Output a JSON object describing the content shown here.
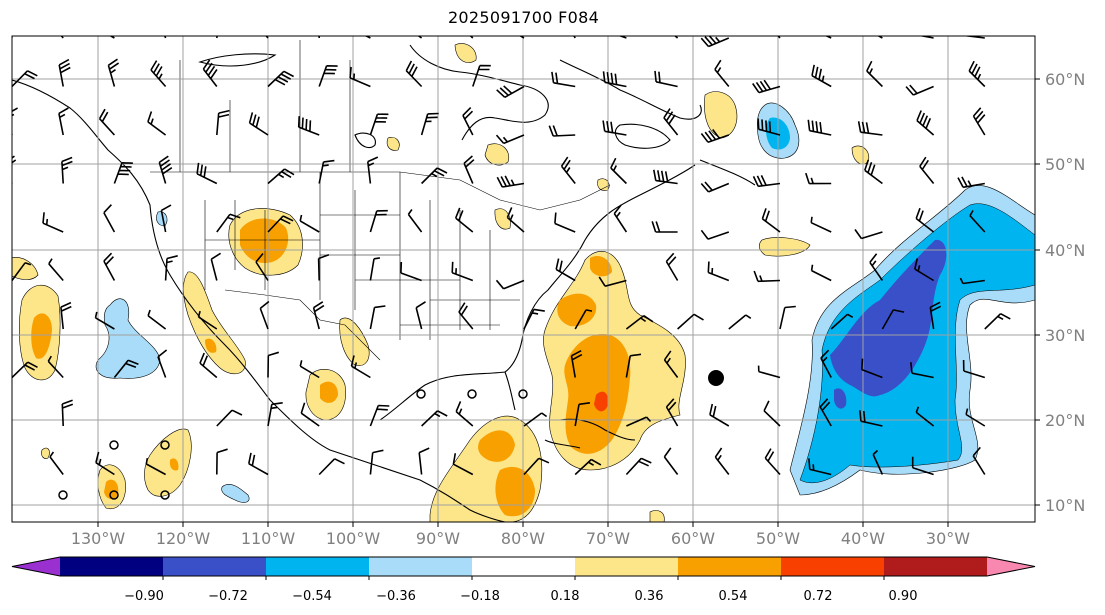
{
  "title": "2025091700 F084",
  "lat_labels": [
    "60°N",
    "50°N",
    "40°N",
    "30°N",
    "20°N",
    "10°N"
  ],
  "lon_labels": [
    "130°W",
    "120°W",
    "110°W",
    "100°W",
    "90°W",
    "80°W",
    "70°W",
    "60°W",
    "50°W",
    "40°W",
    "30°W"
  ],
  "colorbar": {
    "colors": [
      "#9b30d0",
      "#000080",
      "#3a50c8",
      "#00b4f0",
      "#a8dcf8",
      "#ffffff",
      "#fde68a",
      "#f8a000",
      "#f84000",
      "#b01c1c",
      "#f888b0"
    ],
    "ticks": [
      "−0.90",
      "−0.72",
      "−0.54",
      "−0.36",
      "−0.18",
      "0.18",
      "0.36",
      "0.54",
      "0.72",
      "0.90"
    ]
  },
  "colors": {
    "land_line": "#000000",
    "grid": "#a0a0a0",
    "lt_yellow": "#fde68a",
    "orange": "#f8a000",
    "red": "#f84000",
    "cyan": "#00b4f0",
    "lt_blue": "#a8dcf8",
    "blue": "#3a50c8"
  }
}
